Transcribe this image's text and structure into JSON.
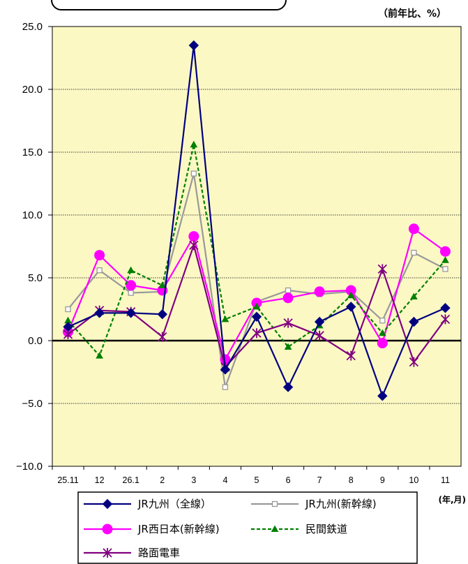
{
  "chart_data": {
    "type": "line",
    "unit_label": "（前年比、%）",
    "x_unit_label": "(年,月)",
    "categories": [
      "25.11",
      "12",
      "26.1",
      "2",
      "3",
      "4",
      "5",
      "6",
      "7",
      "8",
      "9",
      "10",
      "11"
    ],
    "y_ticks": [
      "25.0",
      "20.0",
      "15.0",
      "10.0",
      "5.0",
      "0.0",
      "−5.0",
      "−10.0"
    ],
    "ylim": [
      -10,
      25
    ],
    "grid": "horizontal dotted",
    "legend_position": "bottom",
    "plot_background": "#FBF8C4",
    "series": [
      {
        "name": "JR九州（全線）",
        "color": "#000080",
        "marker": "diamond",
        "dash": "solid",
        "values": [
          1.1,
          2.2,
          2.2,
          2.1,
          23.5,
          -2.3,
          1.9,
          -3.7,
          1.5,
          2.7,
          -4.4,
          1.5,
          2.6
        ]
      },
      {
        "name": "JR九州(新幹線)",
        "color": "#999999",
        "marker": "square-open",
        "dash": "solid",
        "values": [
          2.5,
          5.6,
          3.8,
          3.9,
          13.3,
          -3.7,
          3.1,
          4.0,
          3.7,
          3.9,
          1.6,
          7.0,
          5.7
        ]
      },
      {
        "name": "JR西日本(新幹線)",
        "color": "#FF00FF",
        "marker": "circle",
        "dash": "solid",
        "values": [
          0.7,
          6.8,
          4.4,
          4.0,
          8.3,
          -1.5,
          3.0,
          3.4,
          3.9,
          4.0,
          -0.2,
          8.9,
          7.1
        ]
      },
      {
        "name": "民間鉄道",
        "color": "#008000",
        "marker": "triangle",
        "dash": "dashed",
        "values": [
          1.6,
          -1.2,
          5.6,
          4.4,
          15.6,
          1.7,
          2.7,
          -0.5,
          1.2,
          3.6,
          0.6,
          3.5,
          6.4
        ]
      },
      {
        "name": "路面電車",
        "color": "#800080",
        "marker": "asterisk",
        "dash": "solid",
        "values": [
          0.5,
          2.4,
          2.3,
          0.3,
          7.6,
          -2.1,
          0.6,
          1.4,
          0.4,
          -1.2,
          5.7,
          -1.7,
          1.7
        ]
      }
    ]
  }
}
